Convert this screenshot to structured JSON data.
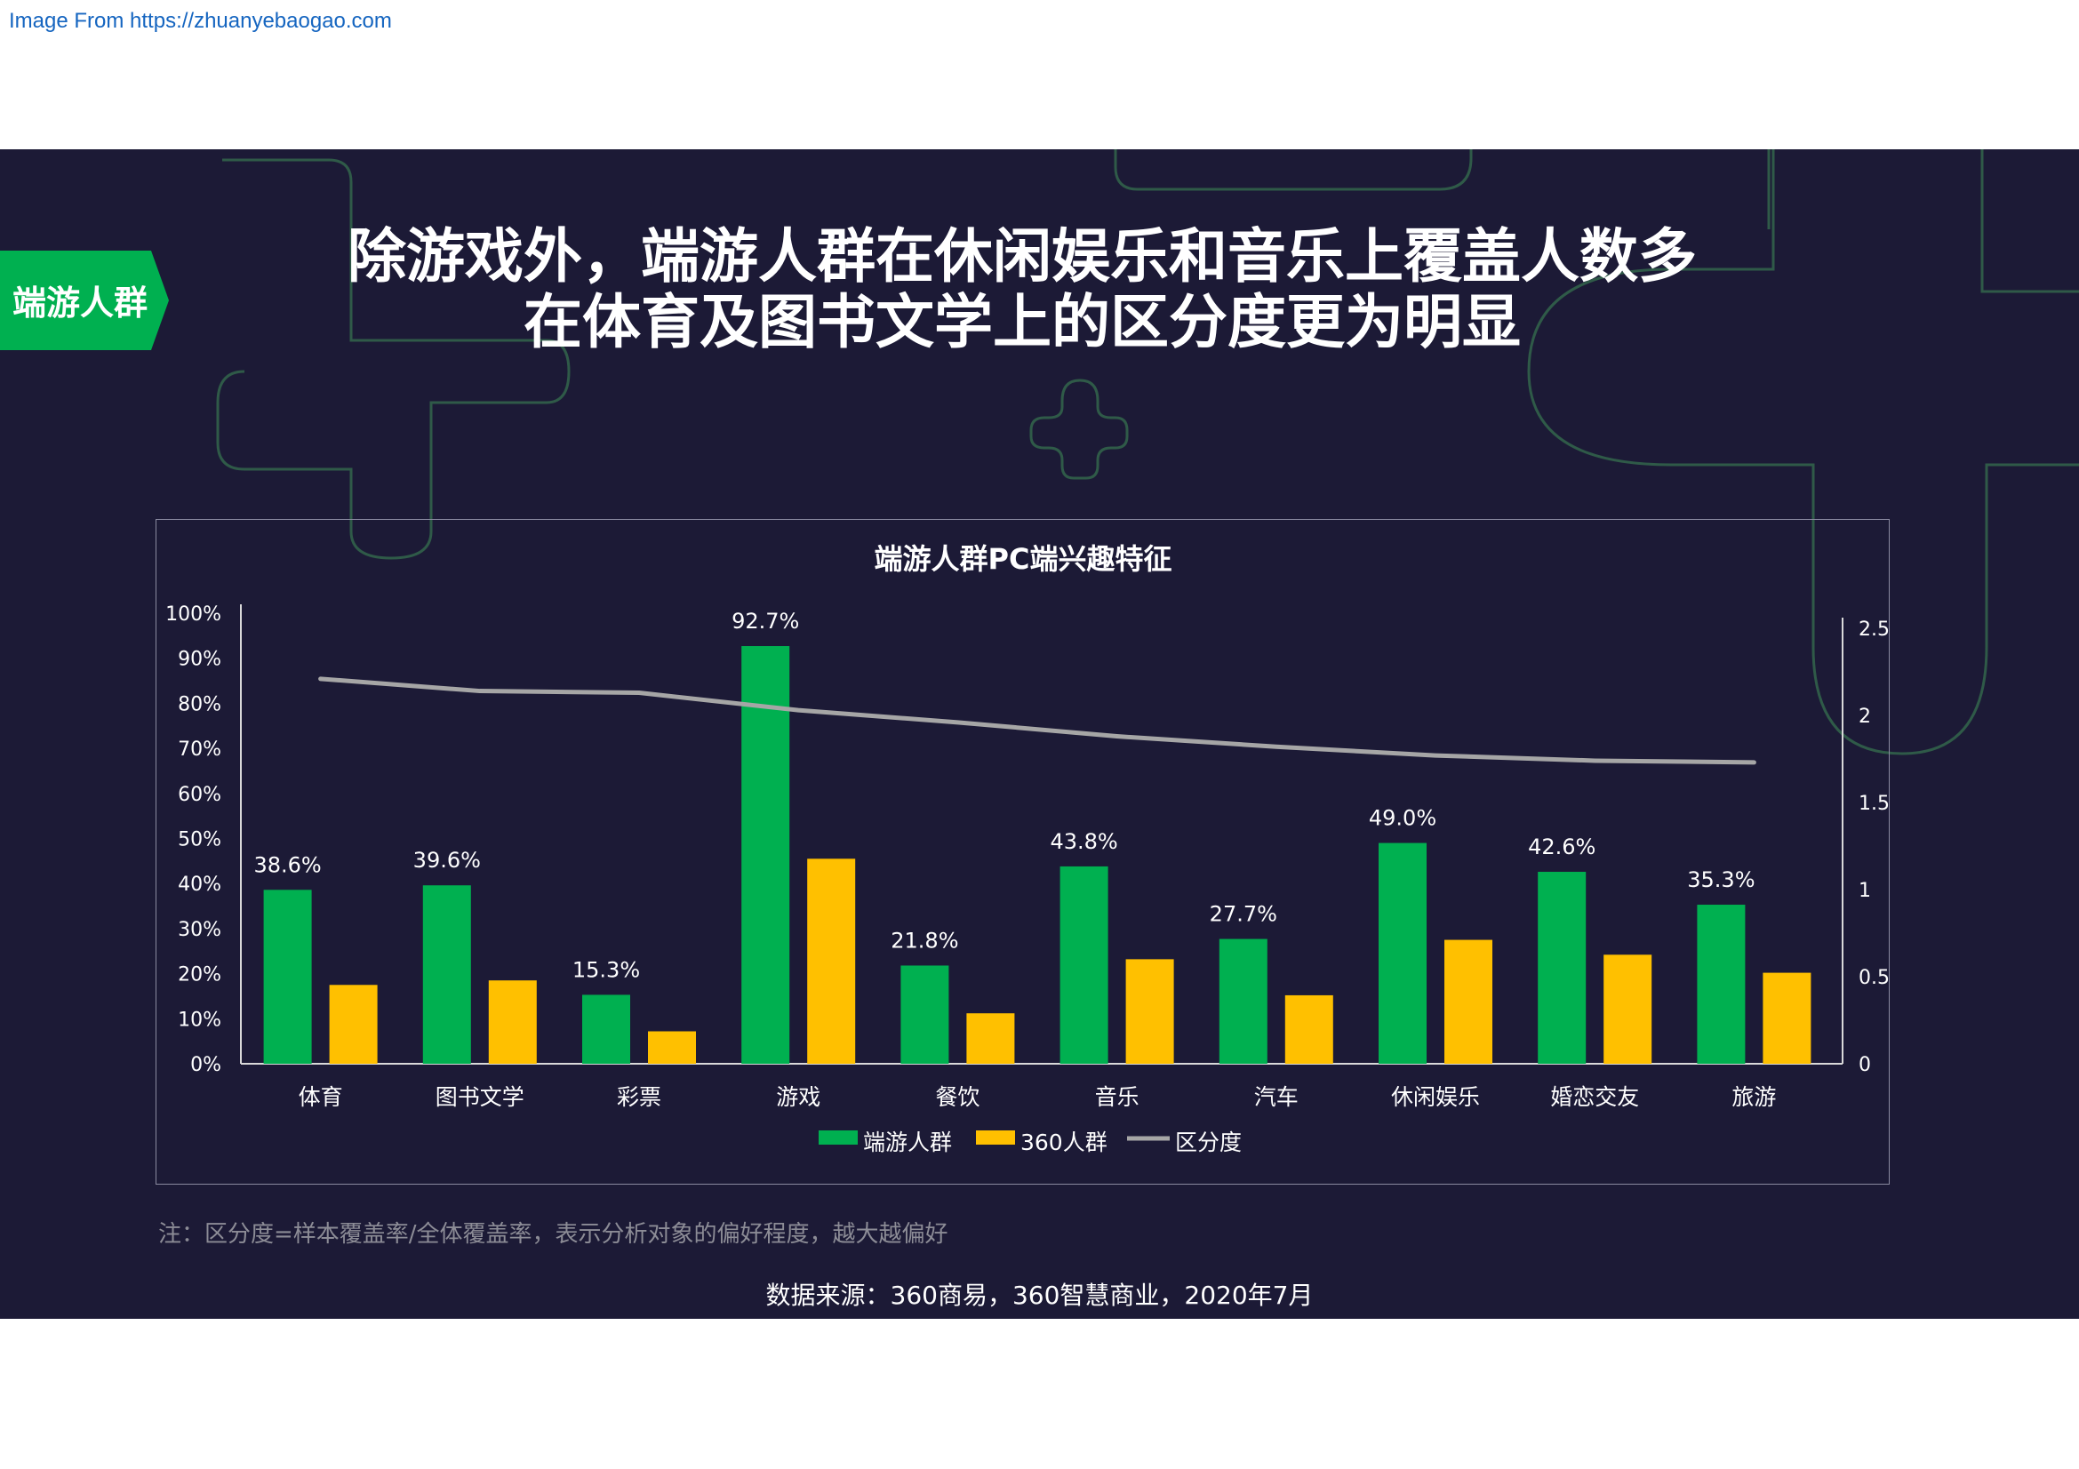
{
  "watermark": "Image From https://zhuanyebaogao.com",
  "tag": "端游人群",
  "headline": {
    "line1": "除游戏外，端游人群在休闲娱乐和音乐上覆盖人数多",
    "line2": "在体育及图书文学上的区分度更为明显"
  },
  "note": "注：区分度=样本覆盖率/全体覆盖率，表示分析对象的偏好程度，越大越偏好",
  "source": "数据来源：360商易，360智慧商业，2020年7月",
  "colors": {
    "background": "#1c1a36",
    "accent_green": "#00b050",
    "accent_yellow": "#ffc000",
    "line_gray": "#a6a6a6",
    "deco_green": "#2f5a48"
  },
  "chart_data": {
    "type": "bar",
    "title": "端游人群PC端兴趣特征",
    "categories": [
      "体育",
      "图书文学",
      "彩票",
      "游戏",
      "餐饮",
      "音乐",
      "汽车",
      "休闲娱乐",
      "婚恋交友",
      "旅游"
    ],
    "series": [
      {
        "name": "端游人群",
        "kind": "bar",
        "axis": "left",
        "color": "#00b050",
        "values": [
          38.6,
          39.6,
          15.3,
          92.7,
          21.8,
          43.8,
          27.7,
          49.0,
          42.6,
          35.3
        ],
        "labels": [
          "38.6%",
          "39.6%",
          "15.3%",
          "92.7%",
          "21.8%",
          "43.8%",
          "27.7%",
          "49.0%",
          "42.6%",
          "35.3%"
        ]
      },
      {
        "name": "360人群",
        "kind": "bar",
        "axis": "left",
        "color": "#ffc000",
        "values": [
          17.5,
          18.5,
          7.2,
          45.5,
          11.2,
          23.2,
          15.2,
          27.5,
          24.2,
          20.2
        ]
      },
      {
        "name": "区分度",
        "kind": "line",
        "axis": "right",
        "color": "#a6a6a6",
        "values": [
          2.21,
          2.14,
          2.13,
          2.03,
          1.96,
          1.88,
          1.82,
          1.77,
          1.74,
          1.73
        ]
      }
    ],
    "y_left": {
      "lim": [
        0,
        100
      ],
      "ticks": [
        "0%",
        "10%",
        "20%",
        "30%",
        "40%",
        "50%",
        "60%",
        "70%",
        "80%",
        "90%",
        "100%"
      ]
    },
    "y_right": {
      "lim": [
        0,
        2.6
      ],
      "ticks": [
        "0",
        "0.5",
        "1",
        "1.5",
        "2",
        "2.5"
      ],
      "tick_values": [
        0,
        0.5,
        1,
        1.5,
        2,
        2.5
      ]
    },
    "grid": false,
    "legend_position": "bottom"
  }
}
